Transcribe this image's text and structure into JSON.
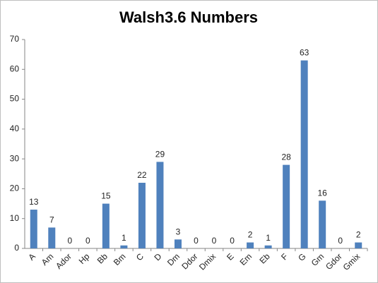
{
  "chart_data": {
    "type": "bar",
    "title": "Walsh3.6 Numbers",
    "categories": [
      "A",
      "Am",
      "Ador",
      "Hp",
      "Bb",
      "Bm",
      "C",
      "D",
      "Dm",
      "Ddor",
      "Dmix",
      "E",
      "Em",
      "Eb",
      "F",
      "G",
      "Gm",
      "Gdor",
      "Gmix"
    ],
    "values": [
      13,
      7,
      0,
      0,
      15,
      1,
      22,
      29,
      3,
      0,
      0,
      0,
      2,
      1,
      28,
      63,
      16,
      0,
      2
    ],
    "color": "#4f81bd",
    "ylim": [
      0,
      70
    ],
    "yticks": [
      0,
      10,
      20,
      30,
      40,
      50,
      60,
      70
    ],
    "grid": false,
    "data_labels": true
  }
}
